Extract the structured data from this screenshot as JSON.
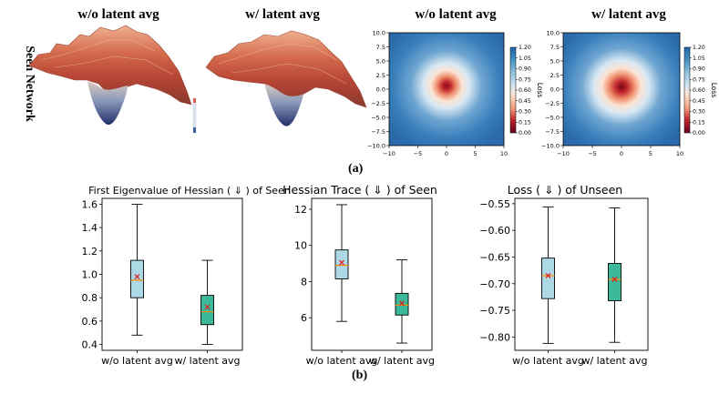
{
  "panel_a": {
    "label": "(a)",
    "row_label": "Seen Network",
    "titles": [
      "w/o latent avg",
      "w/ latent avg",
      "w/o latent avg",
      "w/ latent avg"
    ]
  },
  "panel_b": {
    "label": "(b)"
  },
  "colors": {
    "box_a": "#add8e6",
    "box_b": "#3cb89a",
    "median": "#ff8c00",
    "mean": "#e41a1c"
  },
  "chart_data": [
    {
      "type": "heatmap",
      "title": "w/o latent avg",
      "xlabel": "",
      "ylabel": "",
      "xlim": [
        -10,
        10
      ],
      "ylim": [
        -10,
        10
      ],
      "xticks": [
        "−10",
        "−5",
        "0",
        "5",
        "10"
      ],
      "yticks": [
        "10.0",
        "7.5",
        "5.0",
        "2.5",
        "0.0",
        "−2.5",
        "−5.0",
        "−7.5",
        "−10.0"
      ],
      "colorbar": {
        "label": "Loss",
        "ticks": [
          "1.20",
          "1.05",
          "0.90",
          "0.75",
          "0.60",
          "0.45",
          "0.30",
          "0.15",
          "0.00"
        ]
      }
    },
    {
      "type": "heatmap",
      "title": "w/ latent avg",
      "xlabel": "",
      "ylabel": "",
      "xlim": [
        -10,
        10
      ],
      "ylim": [
        -10,
        10
      ],
      "xticks": [
        "−10",
        "−5",
        "0",
        "5",
        "10"
      ],
      "yticks": [
        "10.0",
        "7.5",
        "5.0",
        "2.5",
        "0.0",
        "−2.5",
        "−5.0",
        "−7.5",
        "−10.0"
      ],
      "colorbar": {
        "label": "Loss",
        "ticks": [
          "1.20",
          "1.05",
          "0.90",
          "0.75",
          "0.60",
          "0.45",
          "0.30",
          "0.15",
          "0.00"
        ]
      }
    },
    {
      "type": "box",
      "title": "First Eigenvalue of Hessian ( ⇓ ) of Seen",
      "categories": [
        "w/o latent avg",
        "w/ latent avg"
      ],
      "ylim": [
        0.35,
        1.65
      ],
      "yticks": [
        0.4,
        0.6,
        0.8,
        1.0,
        1.2,
        1.4,
        1.6
      ],
      "ytick_labels": [
        "0.4",
        "0.6",
        "0.8",
        "1.0",
        "1.2",
        "1.4",
        "1.6"
      ],
      "series": [
        {
          "name": "w/o latent avg",
          "min": 0.48,
          "q1": 0.8,
          "median": 0.95,
          "q3": 1.12,
          "max": 1.6,
          "mean": 0.98
        },
        {
          "name": "w/ latent avg",
          "min": 0.4,
          "q1": 0.57,
          "median": 0.68,
          "q3": 0.82,
          "max": 1.12,
          "mean": 0.72
        }
      ]
    },
    {
      "type": "box",
      "title": "Hessian Trace ( ⇓ ) of Seen",
      "categories": [
        "w/o latent avg",
        "w/ latent avg"
      ],
      "ylim": [
        4.2,
        12.6
      ],
      "yticks": [
        6,
        8,
        10,
        12
      ],
      "ytick_labels": [
        "6",
        "8",
        "10",
        "12"
      ],
      "series": [
        {
          "name": "w/o latent avg",
          "min": 5.8,
          "q1": 8.15,
          "median": 8.9,
          "q3": 9.75,
          "max": 12.25,
          "mean": 9.05
        },
        {
          "name": "w/ latent avg",
          "min": 4.6,
          "q1": 6.15,
          "median": 6.7,
          "q3": 7.35,
          "max": 9.2,
          "mean": 6.8
        }
      ]
    },
    {
      "type": "box",
      "title": "Loss ( ⇓ ) of Unseen",
      "categories": [
        "w/o latent avg",
        "w/ latent avg"
      ],
      "ylim": [
        -0.825,
        -0.54
      ],
      "yticks": [
        -0.55,
        -0.6,
        -0.65,
        -0.7,
        -0.75,
        -0.8
      ],
      "ytick_labels": [
        "−0.55",
        "−0.60",
        "−0.65",
        "−0.70",
        "−0.75",
        "−0.80"
      ],
      "series": [
        {
          "name": "w/o latent avg",
          "min": -0.812,
          "q1": -0.728,
          "median": -0.685,
          "q3": -0.652,
          "max": -0.556,
          "mean": -0.685
        },
        {
          "name": "w/ latent avg",
          "min": -0.81,
          "q1": -0.732,
          "median": -0.692,
          "q3": -0.662,
          "max": -0.558,
          "mean": -0.692
        }
      ]
    }
  ]
}
